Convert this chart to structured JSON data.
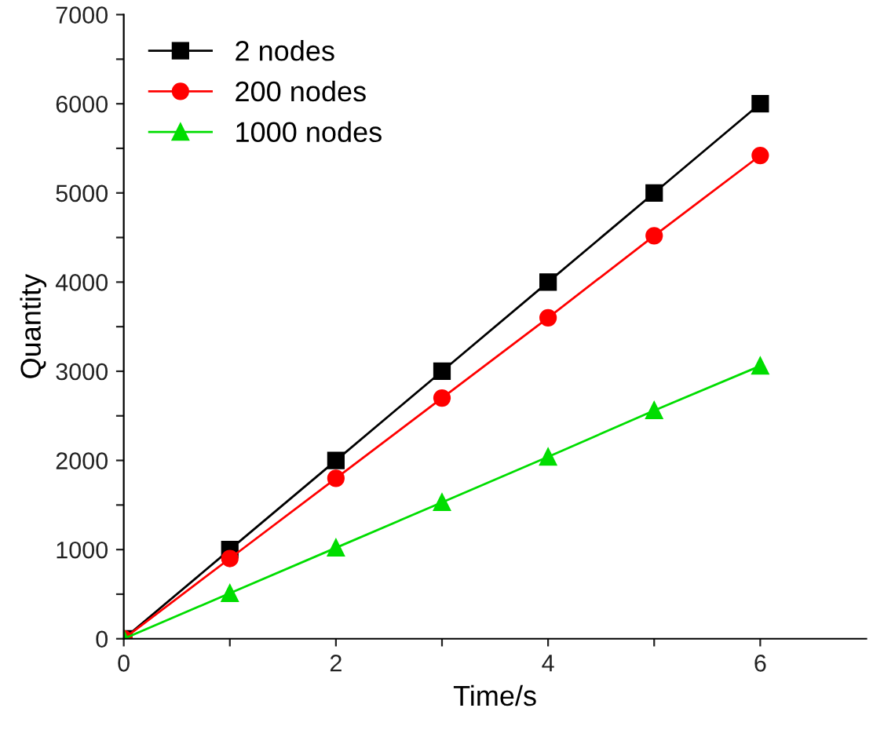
{
  "chart_data": {
    "type": "line",
    "xlabel": "Time/s",
    "ylabel": "Quantity",
    "xlim": [
      0,
      7
    ],
    "xticks": [
      0,
      {
        "value": 1,
        "label": null
      },
      2,
      {
        "value": 3,
        "label": null
      },
      4,
      {
        "value": 5,
        "label": null
      },
      6
    ],
    "ylim": [
      0,
      7000
    ],
    "yticks": [
      0,
      {
        "value": 500,
        "label": null
      },
      1000,
      {
        "value": 1500,
        "label": null
      },
      2000,
      {
        "value": 2500,
        "label": null
      },
      3000,
      {
        "value": 3500,
        "label": null
      },
      4000,
      {
        "value": 4500,
        "label": null
      },
      5000,
      {
        "value": 5500,
        "label": null
      },
      6000,
      {
        "value": 6500,
        "label": null
      },
      7000
    ],
    "x": [
      0,
      1,
      2,
      3,
      4,
      5,
      6
    ],
    "grid": false,
    "legend": "top left",
    "line_style": "solid",
    "series": [
      {
        "name": "2 nodes",
        "color": "#000000",
        "marker": "square",
        "values": [
          0,
          1000,
          2000,
          3000,
          4000,
          5000,
          6000
        ]
      },
      {
        "name": "200 nodes",
        "color": "#ff0000",
        "marker": "circle",
        "values": [
          0,
          900,
          1800,
          2700,
          3600,
          4520,
          5420
        ]
      },
      {
        "name": "1000 nodes",
        "color": "#00dd00",
        "marker": "triangle",
        "values": [
          0,
          510,
          1020,
          1530,
          2040,
          2560,
          3060
        ]
      }
    ]
  }
}
